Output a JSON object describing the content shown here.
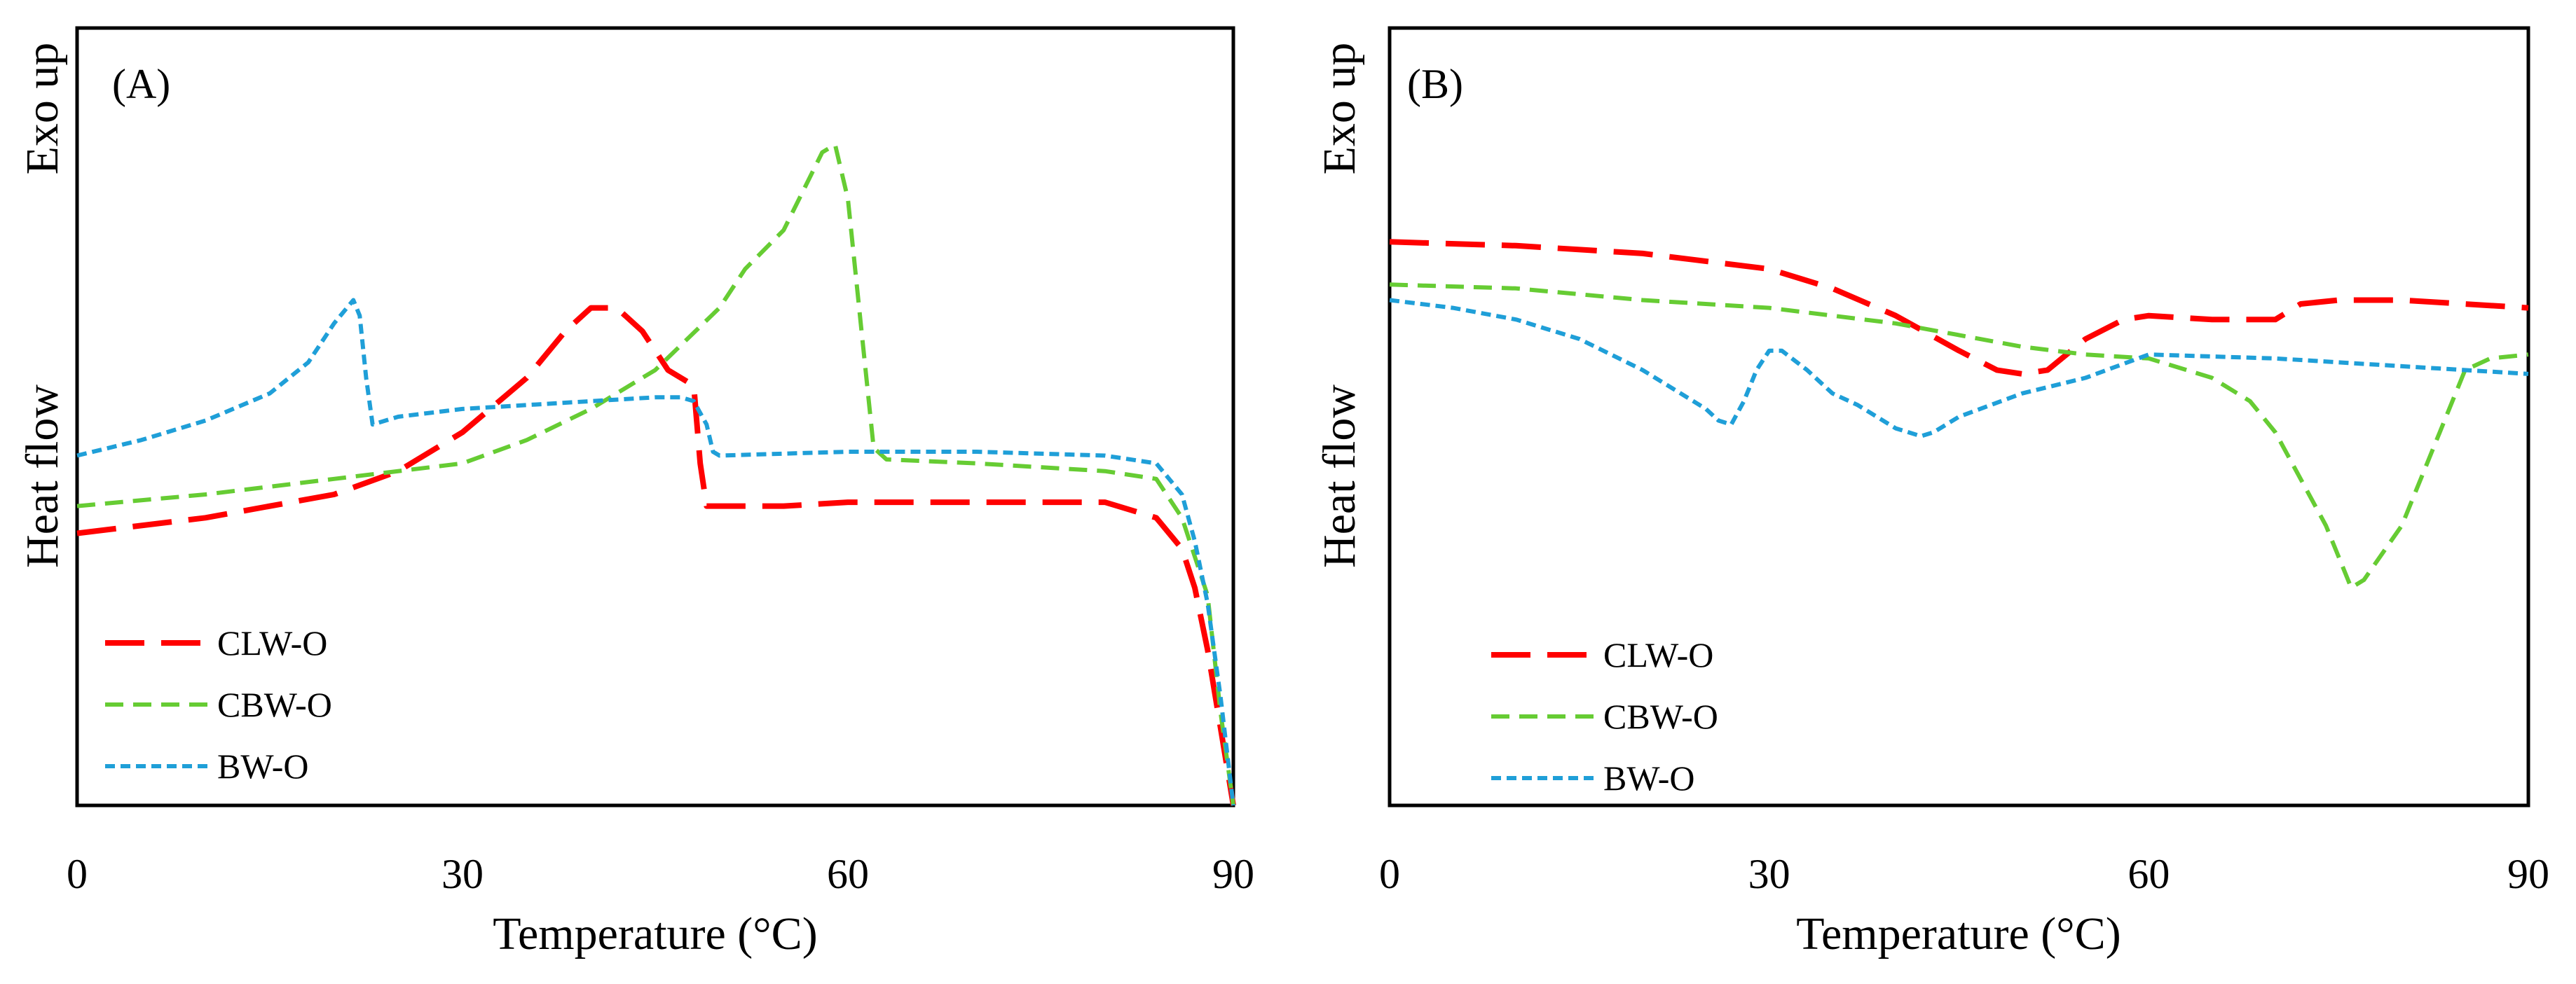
{
  "series_styles": {
    "CLW-O": {
      "color": "#ff0000",
      "dash": "56,24",
      "width": 8
    },
    "CBW-O": {
      "color": "#66cc33",
      "dash": "26,14",
      "width": 6
    },
    "BW-O": {
      "color": "#1f9fd8",
      "dash": "14,8",
      "width": 6
    }
  },
  "chart_data": [
    {
      "type": "line",
      "panel_label": "(A)",
      "xlabel": "Temperature (°C)",
      "ylabel_top": "Exo up",
      "ylabel_mid": "Heat flow",
      "xlim": [
        0,
        90
      ],
      "ylim": [
        0,
        100
      ],
      "xticks": [
        0,
        30,
        60,
        90
      ],
      "legend": [
        "CLW-O",
        "CBW-O",
        "BW-O"
      ],
      "series": [
        {
          "name": "CLW-O",
          "x": [
            0,
            10,
            20,
            25,
            30,
            35,
            38,
            40,
            42,
            44,
            46,
            48,
            48.5,
            49,
            55,
            60,
            70,
            80,
            84,
            86,
            87,
            88,
            89,
            90
          ],
          "y": [
            35,
            37,
            40,
            43,
            48,
            55,
            61,
            64,
            64,
            61,
            56,
            54,
            44,
            38.5,
            38.5,
            39,
            39,
            39,
            37,
            33,
            28,
            20,
            10,
            0
          ]
        },
        {
          "name": "CBW-O",
          "x": [
            0,
            10,
            20,
            30,
            35,
            40,
            45,
            50,
            52,
            55,
            58,
            59,
            60,
            61,
            62,
            63,
            70,
            80,
            84,
            86,
            88,
            89,
            90
          ],
          "y": [
            38.5,
            40,
            42,
            44,
            47,
            51,
            56,
            64,
            69,
            74,
            84,
            85,
            78,
            62,
            46,
            44.5,
            44,
            43,
            42,
            37,
            27,
            12,
            0
          ]
        },
        {
          "name": "BW-O",
          "x": [
            0,
            5,
            10,
            15,
            18,
            20,
            21.5,
            22,
            22.5,
            23,
            25,
            30,
            40,
            45,
            47,
            48,
            49,
            49.5,
            50,
            60,
            70,
            80,
            84,
            86,
            87,
            88,
            89,
            90
          ],
          "y": [
            45,
            47,
            49.5,
            53,
            57,
            62,
            65,
            63,
            55,
            49,
            50,
            51,
            52,
            52.5,
            52.5,
            52,
            49,
            45.5,
            45,
            45.5,
            45.5,
            45,
            44,
            40,
            34,
            26,
            14,
            0
          ]
        }
      ]
    },
    {
      "type": "line",
      "panel_label": "(B)",
      "xlabel": "Temperature (°C)",
      "ylabel_top": "Exo up",
      "ylabel_mid": "Heat flow",
      "xlim": [
        0,
        90
      ],
      "ylim": [
        0,
        100
      ],
      "xticks": [
        0,
        30,
        60,
        90
      ],
      "legend": [
        "CLW-O",
        "CBW-O",
        "BW-O"
      ],
      "series": [
        {
          "name": "CLW-O",
          "x": [
            0,
            10,
            20,
            30,
            35,
            40,
            45,
            48,
            50,
            52,
            55,
            58,
            60,
            65,
            68,
            70,
            72,
            75,
            80,
            90
          ],
          "y": [
            72.5,
            72,
            71,
            69,
            66.5,
            63,
            58.5,
            56,
            55.5,
            56,
            60,
            62.5,
            63,
            62.5,
            62.5,
            62.5,
            64.5,
            65,
            65,
            64
          ]
        },
        {
          "name": "CBW-O",
          "x": [
            0,
            10,
            20,
            30,
            40,
            50,
            55,
            60,
            65,
            68,
            70,
            72,
            74,
            75,
            76,
            77,
            80,
            83,
            85,
            87,
            90
          ],
          "y": [
            67,
            66.5,
            65,
            64,
            62,
            59,
            58,
            57.5,
            55,
            52,
            48,
            42,
            36,
            32,
            28,
            29,
            36,
            48,
            56,
            57.5,
            58
          ]
        },
        {
          "name": "BW-O",
          "x": [
            0,
            5,
            10,
            15,
            20,
            25,
            26,
            27,
            28,
            29,
            30,
            31,
            33,
            35,
            37,
            40,
            42,
            43,
            45,
            50,
            55,
            60,
            70,
            80,
            90
          ],
          "y": [
            65,
            64,
            62.5,
            60,
            56,
            51,
            49.5,
            49,
            52,
            56,
            58.5,
            58.5,
            56,
            53,
            51.5,
            48.5,
            47.5,
            48,
            50,
            53,
            55,
            58,
            57.5,
            56.5,
            55.5
          ]
        }
      ]
    }
  ]
}
